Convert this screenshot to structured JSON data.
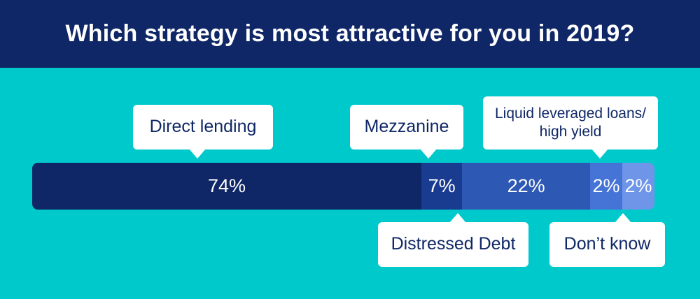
{
  "chart_data": {
    "type": "bar",
    "title": "Which strategy is most attractive for you in 2019?",
    "categories": [
      "Direct lending",
      "Mezzanine",
      "Distressed Debt",
      "Liquid leveraged loans/ high yield",
      "Don’t know"
    ],
    "values": [
      74,
      7,
      22,
      2,
      2
    ],
    "value_labels": [
      "74%",
      "7%",
      "22%",
      "2%",
      "2%"
    ],
    "colors": [
      "#0f2766",
      "#1a3c90",
      "#2d58b4",
      "#4573d6",
      "#6e95e8"
    ],
    "grid": false,
    "legend": "callouts"
  },
  "colors": {
    "background": "#00c9cc",
    "header": "#0f2766"
  }
}
